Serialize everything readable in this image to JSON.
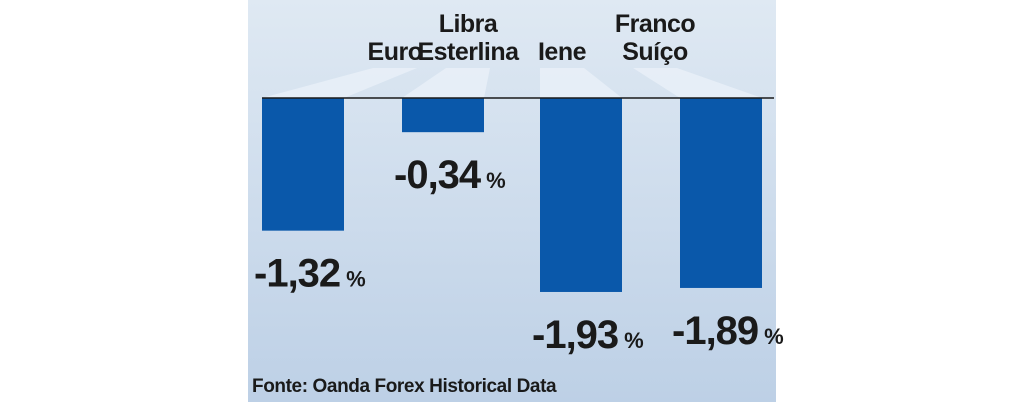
{
  "chart_data": {
    "type": "bar",
    "categories": [
      [
        "Euro"
      ],
      [
        "Libra",
        "Esterlina"
      ],
      [
        "Iene"
      ],
      [
        "Franco",
        "Suíço"
      ]
    ],
    "values": [
      -1.32,
      -0.34,
      -1.93,
      -1.89
    ],
    "value_labels": [
      "-1,32",
      "-0,34",
      "-1,93",
      "-1,89"
    ],
    "unit": "%",
    "ylim": [
      -2.0,
      0
    ],
    "bar_color": "#0a58aa",
    "grid": false,
    "legend": "none"
  },
  "source": "Fonte: Oanda Forex Historical Data"
}
